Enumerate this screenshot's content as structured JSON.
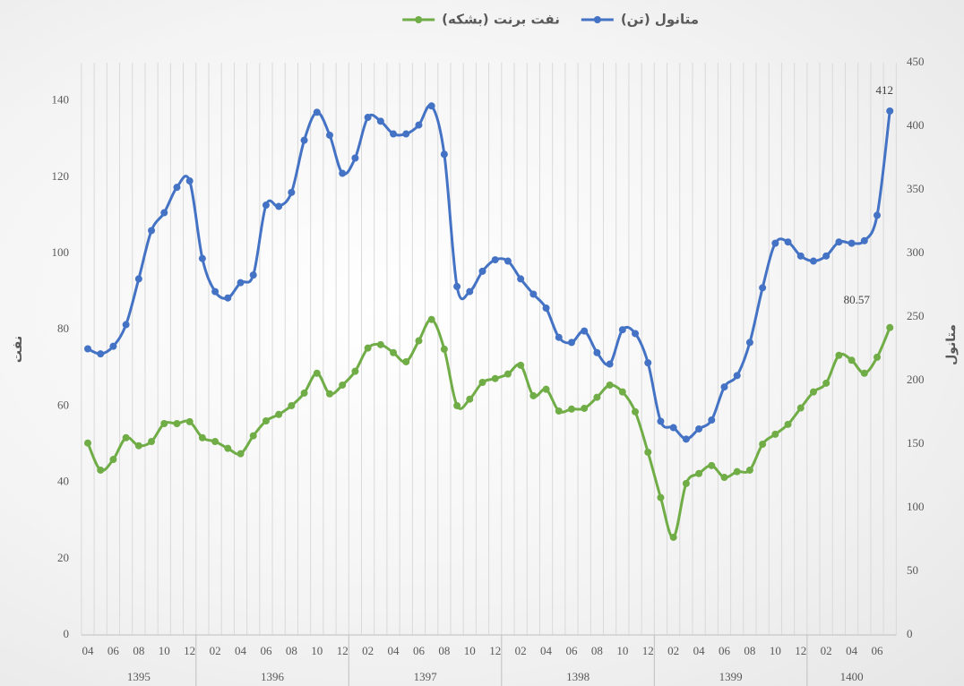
{
  "chart_data": {
    "type": "line",
    "legend": "top",
    "grid": true,
    "categories": [
      "04",
      null,
      "06",
      null,
      "08",
      null,
      "10",
      null,
      "12",
      null,
      "02",
      null,
      "04",
      null,
      "06",
      null,
      "08",
      null,
      "10",
      null,
      "12",
      null,
      "02",
      null,
      "04",
      null,
      "06",
      null,
      "08",
      null,
      "10",
      null,
      "12",
      null,
      "02",
      null,
      "04",
      null,
      "06",
      null,
      "08",
      null,
      "10",
      null,
      "12",
      null,
      "02",
      null,
      "04",
      null,
      "06",
      null,
      "08",
      null,
      "10",
      null,
      "12",
      null,
      "02",
      null,
      "04",
      null,
      "06",
      null
    ],
    "years": [
      "1395",
      "1395",
      "1395",
      "1395",
      "1395",
      "1395",
      "1395",
      "1395",
      "1395",
      "1396",
      "1396",
      "1396",
      "1396",
      "1396",
      "1396",
      "1396",
      "1396",
      "1396",
      "1396",
      "1396",
      "1396",
      "1397",
      "1397",
      "1397",
      "1397",
      "1397",
      "1397",
      "1397",
      "1397",
      "1397",
      "1397",
      "1397",
      "1397",
      "1398",
      "1398",
      "1398",
      "1398",
      "1398",
      "1398",
      "1398",
      "1398",
      "1398",
      "1398",
      "1398",
      "1398",
      "1399",
      "1399",
      "1399",
      "1399",
      "1399",
      "1399",
      "1399",
      "1399",
      "1399",
      "1399",
      "1399",
      "1399",
      "1400",
      "1400",
      "1400",
      "1400",
      "1400",
      "1400",
      "1400"
    ],
    "ylim": [
      0,
      150
    ],
    "yticks": [
      0,
      20,
      40,
      60,
      80,
      100,
      120,
      140
    ],
    "ylabel": "نفت",
    "y2lim": [
      0,
      450
    ],
    "y2ticks": [
      0,
      50,
      100,
      150,
      200,
      250,
      300,
      350,
      400,
      450
    ],
    "y2label": "متانول",
    "series": [
      {
        "name": "متانول (تن)",
        "color": "#4472c4",
        "axis": "y2",
        "values": [
          225,
          221,
          227,
          244,
          280,
          318,
          332,
          352,
          357,
          296,
          270,
          265,
          277,
          283,
          338,
          337,
          348,
          389,
          411,
          393,
          363,
          375,
          407,
          404,
          394,
          394,
          401,
          416,
          378,
          274,
          270,
          286,
          295,
          294,
          280,
          268,
          257,
          234,
          230,
          239,
          222,
          213,
          240,
          237,
          214,
          168,
          163,
          154,
          162,
          169,
          195,
          204,
          230,
          273,
          308,
          309,
          298,
          294,
          298,
          309,
          308,
          310,
          330,
          412
        ],
        "value_labels": [
          null,
          null,
          null,
          null,
          null,
          null,
          null,
          null,
          null,
          null,
          null,
          null,
          null,
          null,
          null,
          null,
          null,
          null,
          null,
          null,
          null,
          null,
          null,
          null,
          null,
          null,
          null,
          null,
          null,
          null,
          null,
          null,
          null,
          null,
          null,
          null,
          null,
          null,
          null,
          null,
          null,
          null,
          null,
          null,
          null,
          null,
          null,
          null,
          null,
          null,
          null,
          null,
          null,
          null,
          null,
          null,
          null,
          null,
          null,
          null,
          null,
          null,
          null,
          "412"
        ]
      },
      {
        "name": "نفت برنت (بشکه)",
        "color": "#70ad47",
        "axis": "y",
        "values": [
          50.3,
          43.2,
          46.0,
          51.7,
          49.6,
          50.7,
          55.4,
          55.4,
          55.9,
          51.7,
          50.7,
          48.9,
          47.5,
          52.2,
          56.1,
          57.8,
          60.1,
          63.4,
          68.6,
          63.2,
          65.5,
          69.1,
          75.2,
          76.1,
          74.0,
          71.6,
          77.1,
          82.7,
          74.9,
          60.1,
          61.8,
          66.2,
          67.2,
          68.4,
          70.7,
          62.7,
          64.4,
          58.7,
          59.2,
          59.4,
          62.3,
          65.5,
          63.7,
          58.5,
          47.9,
          36.0,
          25.6,
          39.7,
          42.3,
          44.4,
          41.3,
          42.8,
          43.2,
          50.0,
          52.6,
          55.2,
          59.5,
          63.7,
          66.0,
          73.3,
          72.0,
          68.6,
          72.8,
          80.57
        ],
        "value_labels": [
          null,
          null,
          null,
          null,
          null,
          null,
          null,
          null,
          null,
          null,
          null,
          null,
          null,
          null,
          null,
          null,
          null,
          null,
          null,
          null,
          null,
          null,
          null,
          null,
          null,
          null,
          null,
          null,
          null,
          null,
          null,
          null,
          null,
          null,
          null,
          null,
          null,
          null,
          null,
          null,
          null,
          null,
          null,
          null,
          null,
          null,
          null,
          null,
          null,
          null,
          null,
          null,
          null,
          null,
          null,
          null,
          null,
          null,
          null,
          null,
          null,
          null,
          null,
          "80.57"
        ]
      }
    ]
  }
}
